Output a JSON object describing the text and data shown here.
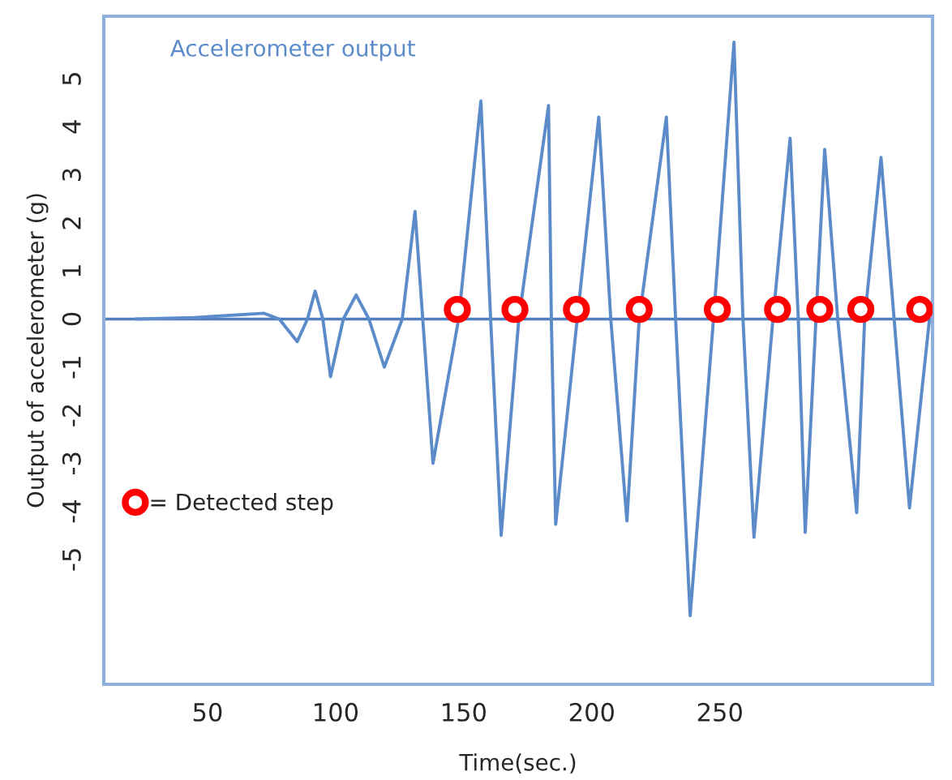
{
  "chart_data": {
    "type": "line",
    "xlabel": "Time(sec.)",
    "ylabel": "Output of accelerometer (g)",
    "xlim": [
      9.5,
      333
    ],
    "ylim": [
      -7.6,
      6.3
    ],
    "xticks": [
      50,
      100,
      150,
      200,
      250
    ],
    "yticks": [
      -5,
      -4,
      -3,
      -2,
      -1,
      0,
      1,
      2,
      3,
      4,
      5
    ],
    "grid": false,
    "legend": "left",
    "ref_lines": [
      {
        "axis": "y",
        "value": 0,
        "color": "#4f7fbf"
      }
    ],
    "series": [
      {
        "name": "Accelerometer output",
        "color": "#5b8bc9",
        "marker": "none",
        "line_style": "solid",
        "x": [
          22,
          45,
          72,
          78,
          85,
          89,
          92,
          95,
          98,
          103,
          108,
          113,
          119,
          126,
          131,
          134,
          138,
          148,
          156.7,
          160.5,
          164.6,
          171.5,
          183.1,
          184.2,
          185.9,
          194.3,
          202.7,
          207.4,
          213.7,
          218.5,
          229.1,
          232.7,
          238.4,
          247.5,
          255.5,
          259,
          263.3,
          270.7,
          277.4,
          280.6,
          283.3,
          287.5,
          290.9,
          296,
          303.4,
          306.5,
          312.9,
          318,
          324,
          331.8
        ],
        "values": [
          0,
          0.03,
          0.12,
          0,
          -0.47,
          0,
          0.58,
          0,
          -1.2,
          0,
          0.5,
          0,
          -1.0,
          0,
          2.24,
          0,
          -3.0,
          0,
          4.54,
          0,
          -4.5,
          0,
          4.44,
          0,
          -4.27,
          0,
          4.2,
          0,
          -4.2,
          0,
          4.2,
          0,
          -6.17,
          0,
          5.76,
          0,
          -4.54,
          0,
          3.76,
          0,
          -4.44,
          0,
          3.53,
          0,
          -4.03,
          0,
          3.36,
          0,
          -3.93,
          0
        ]
      },
      {
        "name": "= Detected step",
        "type": "scatter",
        "color": "#ff0000",
        "marker": "circle",
        "x": [
          147.5,
          170,
          194,
          218.5,
          249,
          272.5,
          289,
          305,
          328
        ],
        "values": [
          0.2,
          0.2,
          0.2,
          0.2,
          0.2,
          0.2,
          0.2,
          0.2,
          0.2
        ]
      }
    ]
  }
}
